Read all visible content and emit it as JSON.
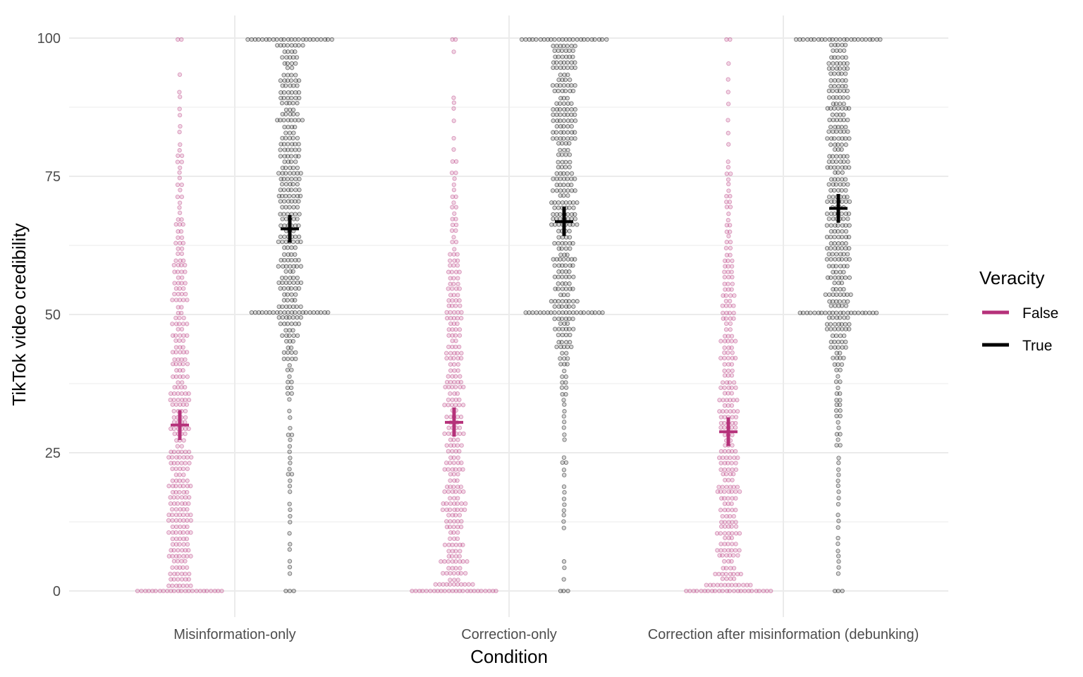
{
  "chart_data": {
    "type": "scatter",
    "subtype": "beeswarm with mean and confidence-interval crosses",
    "title": "",
    "xlabel": "Condition",
    "ylabel": "TikTok video credibility",
    "categories": [
      "Misinformation-only",
      "Correction-only",
      "Correction after misinformation (debunking)"
    ],
    "ylim": [
      0,
      100
    ],
    "yticks": [
      0,
      25,
      50,
      75,
      100
    ],
    "grid": true,
    "legend": {
      "title": "Veracity",
      "position": "right",
      "entries": [
        "False",
        "True"
      ]
    },
    "colors": {
      "False": "#b5317a",
      "True": "#000000",
      "grid": "#ebebeb"
    },
    "series": [
      {
        "name": "False",
        "means": [
          30.0,
          30.5,
          28.8
        ],
        "ci_low": [
          27.3,
          27.9,
          26.2
        ],
        "ci_high": [
          32.7,
          33.2,
          31.4
        ],
        "distribution_note": "dense at 0, spread across 0-100, sparse above 75"
      },
      {
        "name": "True",
        "means": [
          65.5,
          66.8,
          69.2
        ],
        "ci_low": [
          63.0,
          64.2,
          66.6
        ],
        "ci_high": [
          68.0,
          69.5,
          71.8
        ],
        "distribution_note": "dense at 100 and 50-100, sparse below 45"
      }
    ]
  }
}
